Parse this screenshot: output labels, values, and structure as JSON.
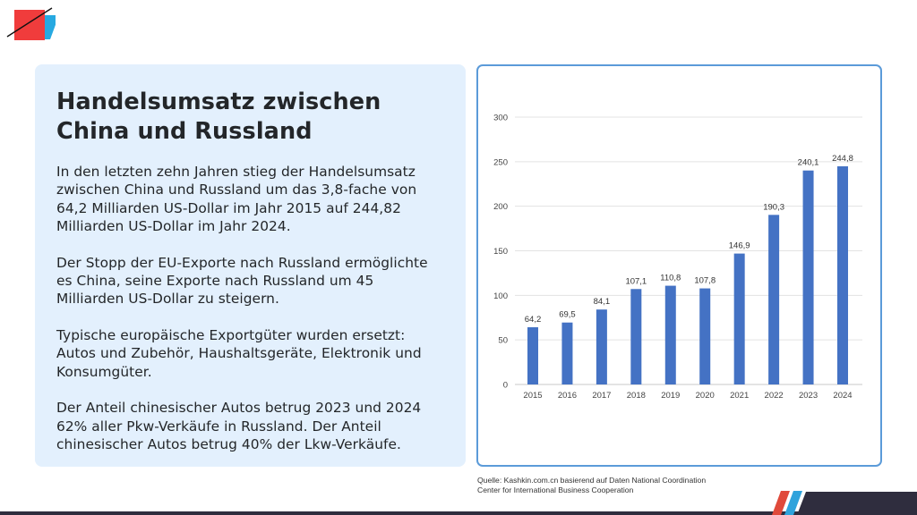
{
  "slide": {
    "title_line1": "Handelsumsatz zwischen",
    "title_line2": "China und Russland",
    "paragraphs": [
      "In den letzten zehn Jahren stieg der Handelsumsatz zwischen China und Russland um das 3,8-fache von 64,2 Milliarden US-Dollar im Jahr 2015 auf 244,82 Milliarden US-Dollar im Jahr 2024.",
      "Der Stopp der EU-Exporte nach Russland ermöglichte es China, seine Exporte nach Russland um 45 Milliarden US-Dollar zu steigern.",
      "Typische europäische Exportgüter wurden ersetzt: Autos und Zubehör, Haushaltsgeräte, Elektronik und Konsumgüter.",
      "Der Anteil chinesischer Autos betrug 2023 und 2024 62% aller Pkw-Verkäufe in Russland. Der Anteil chinesischer Autos betrug 40% der Lkw-Verkäufe."
    ],
    "source_line1": "Quelle: Kashkin.com.cn basierend auf Daten National Coordination",
    "source_line2": "Center for International Business Cooperation"
  },
  "colors": {
    "bar": "#4472c4",
    "panel_bg": "#e3f0fd",
    "chart_border": "#5b9bd9",
    "logo_red": "#f03c3c",
    "logo_blue": "#27a9e1",
    "footer_dark": "#2f2d3e",
    "stripe_red": "#e04a3b",
    "stripe_blue": "#2fa3dc"
  },
  "chart_data": {
    "type": "bar",
    "title": "",
    "xlabel": "",
    "ylabel": "",
    "categories": [
      "2015",
      "2016",
      "2017",
      "2018",
      "2019",
      "2020",
      "2021",
      "2022",
      "2023",
      "2024"
    ],
    "values": [
      64.2,
      69.5,
      84.1,
      107.1,
      110.8,
      107.8,
      146.9,
      190.3,
      240.1,
      244.8
    ],
    "data_labels": [
      "64,2",
      "69,5",
      "84,1",
      "107,1",
      "110,8",
      "107,8",
      "146,9",
      "190,3",
      "240,1",
      "244,8"
    ],
    "ylim": [
      0,
      300
    ],
    "yticks": [
      0,
      50,
      100,
      150,
      200,
      250,
      300
    ],
    "ytick_labels": [
      "0",
      "50",
      "100",
      "150",
      "200",
      "250",
      "300"
    ],
    "grid": true,
    "legend": "none"
  }
}
